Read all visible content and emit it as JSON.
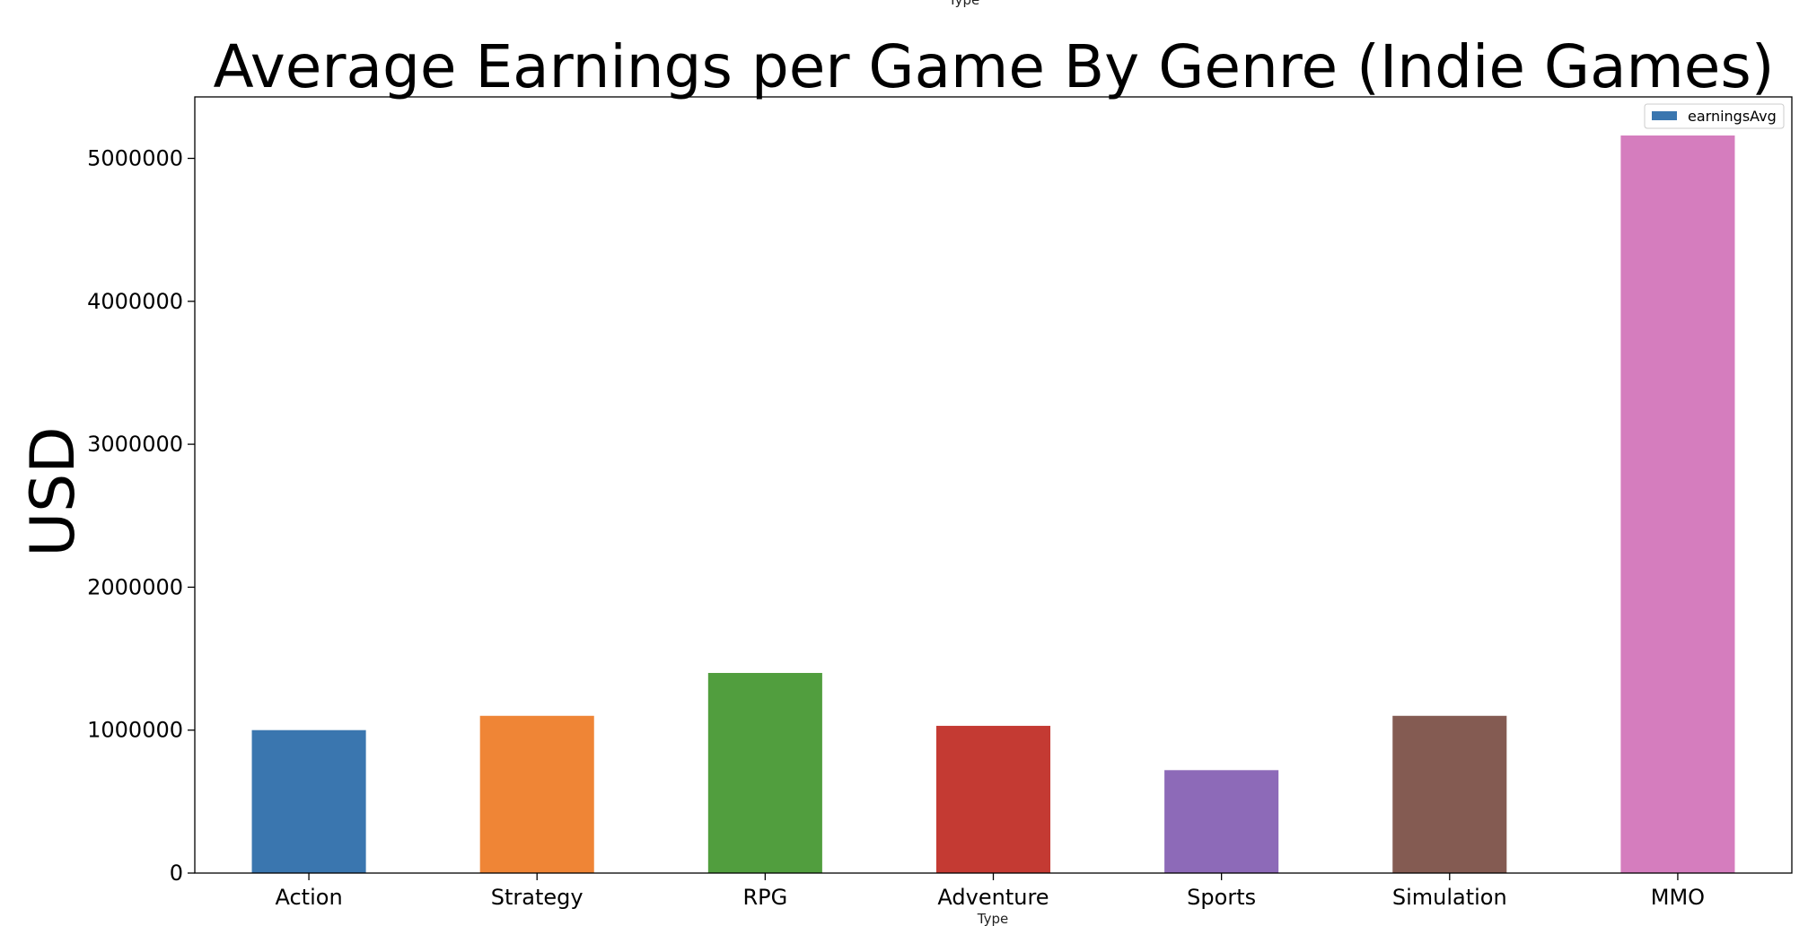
{
  "chart_data": {
    "type": "bar",
    "title": "Average Earnings per Game By Genre (Indie Games)",
    "xlabel": "Type",
    "top_xlabel": "Type",
    "ylabel": "USD",
    "categories": [
      "Action",
      "Strategy",
      "RPG",
      "Adventure",
      "Sports",
      "Simulation",
      "MMO"
    ],
    "series": [
      {
        "name": "earningsAvg",
        "values": [
          1000000,
          1100000,
          1400000,
          1030000,
          720000,
          1100000,
          5160000
        ]
      }
    ],
    "bar_colors": [
      "#3a76af",
      "#ef8536",
      "#519e3e",
      "#c43a33",
      "#8d6ab8",
      "#845b52",
      "#d57dbe"
    ],
    "legend_color": "#3a76af",
    "ylim": [
      0,
      5430000
    ],
    "yticks": [
      0,
      1000000,
      2000000,
      3000000,
      4000000,
      5000000
    ],
    "ytick_labels": [
      "0",
      "1000000",
      "2000000",
      "3000000",
      "4000000",
      "5000000"
    ],
    "legend_position": "top-right",
    "grid": false
  }
}
